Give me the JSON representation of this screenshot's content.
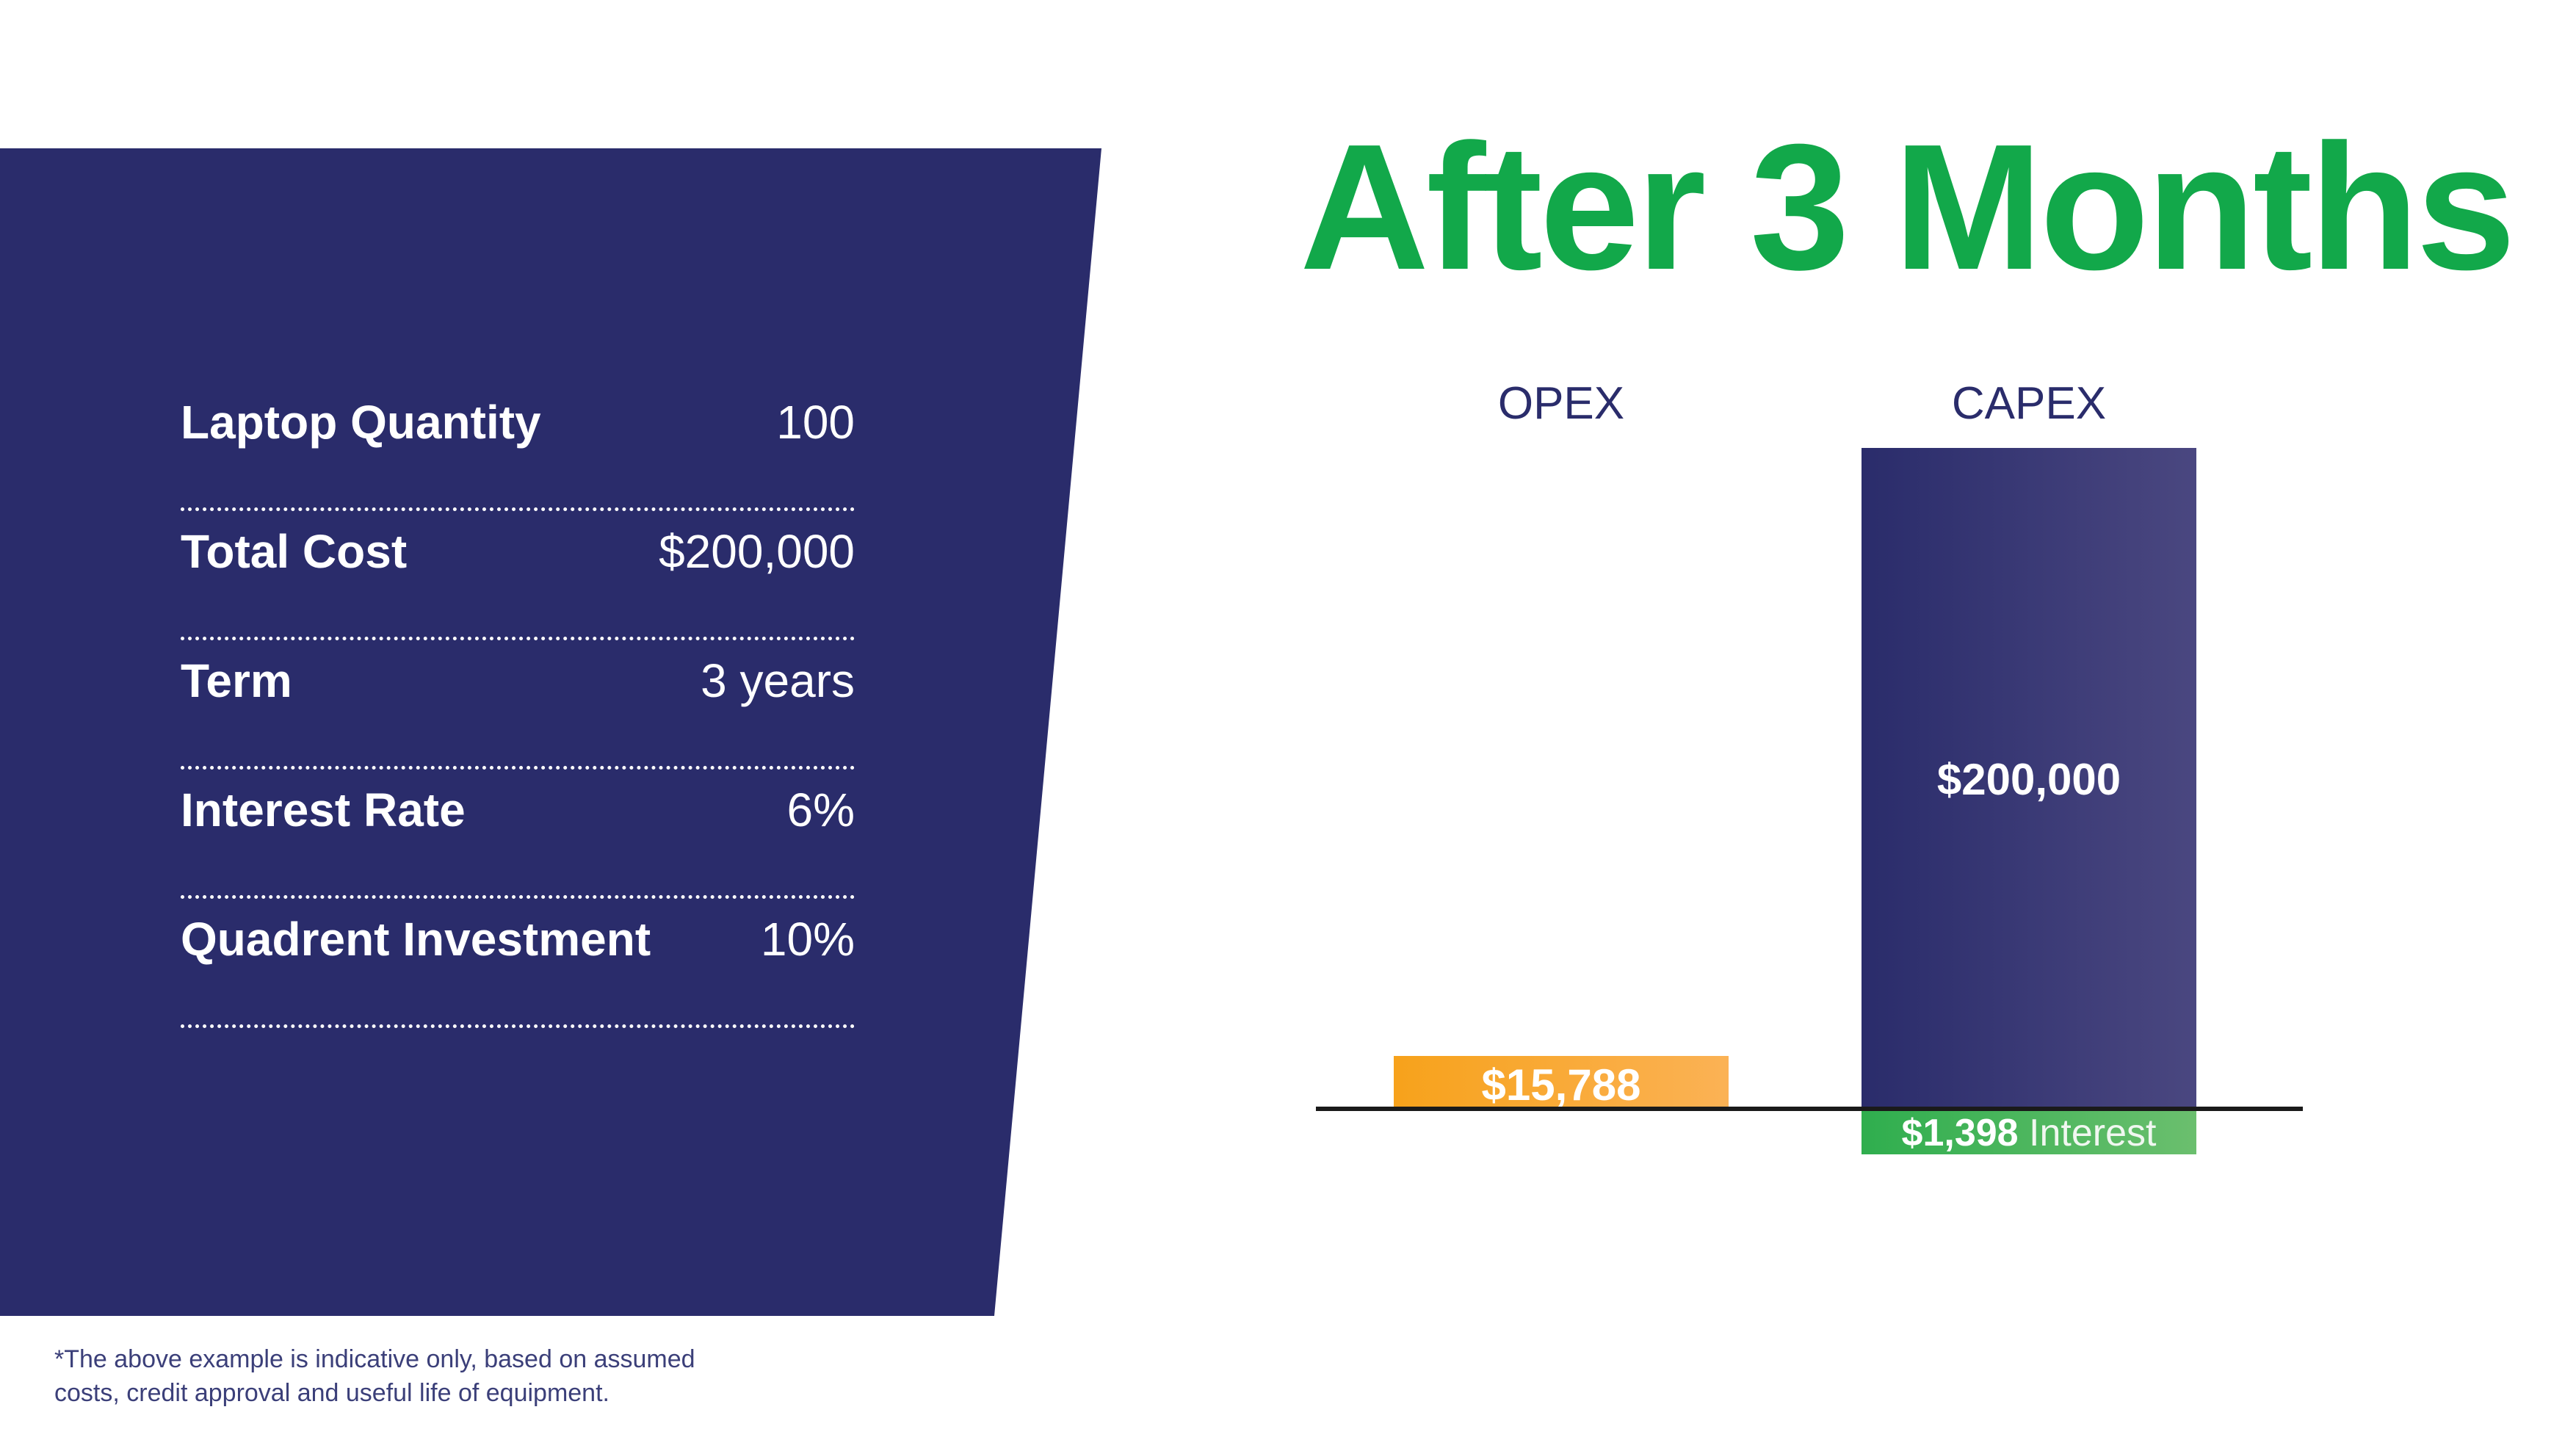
{
  "title": "After 3 Months",
  "specs": [
    {
      "label": "Laptop Quantity",
      "value": "100"
    },
    {
      "label": "Total Cost",
      "value": "$200,000"
    },
    {
      "label": "Term",
      "value": "3 years"
    },
    {
      "label": "Interest Rate",
      "value": "6%"
    },
    {
      "label": "Quadrent Investment",
      "value": "10%"
    }
  ],
  "footnote": {
    "line1": "*The above example is indicative only, based on assumed",
    "line2": "costs, credit approval and useful life of equipment."
  },
  "colors": {
    "panel": "#2a2c6b",
    "title": "#12a84a",
    "opex": "#f7a21b",
    "capex": "#2a2c6b",
    "interest": "#2fae4e"
  },
  "chart_data": {
    "type": "bar",
    "categories": [
      "OPEX",
      "CAPEX"
    ],
    "values": [
      15788,
      200000
    ],
    "data_labels": [
      "$15,788",
      "$200,000"
    ],
    "below_axis": {
      "category": "CAPEX",
      "value": 1398,
      "amount_label": "$1,398",
      "suffix_label": "Interest"
    },
    "ylim": [
      0,
      200000
    ],
    "grid": false,
    "legend": "none"
  }
}
